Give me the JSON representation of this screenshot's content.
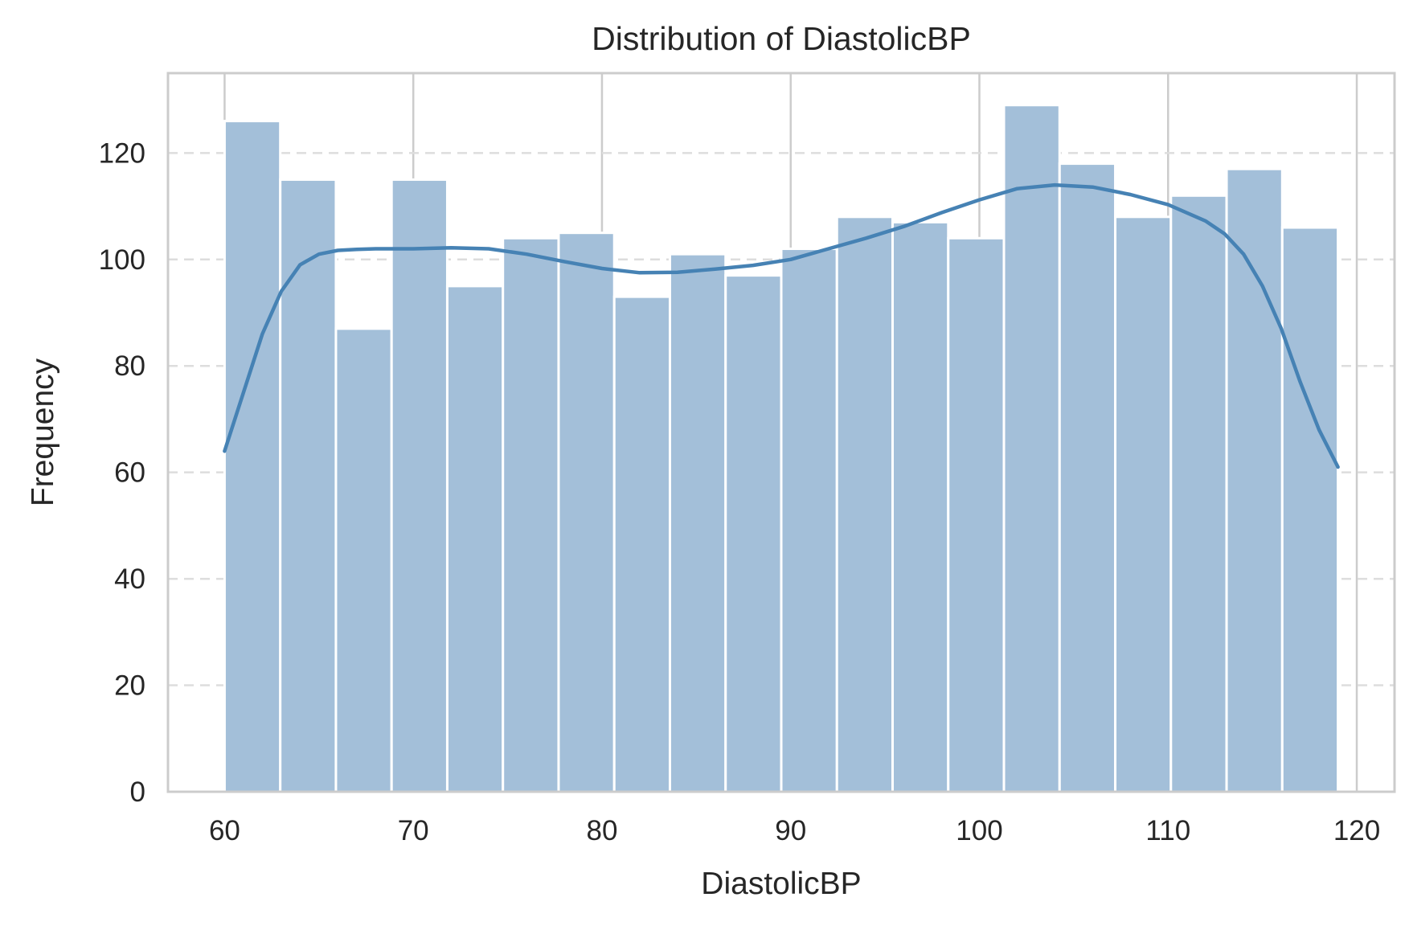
{
  "chart_data": {
    "type": "histogram",
    "title": "Distribution of DiastolicBP",
    "xlabel": "DiastolicBP",
    "ylabel": "Frequency",
    "xlim": [
      57,
      122
    ],
    "ylim": [
      0,
      135
    ],
    "xticks": [
      60,
      70,
      80,
      90,
      100,
      110,
      120
    ],
    "yticks": [
      0,
      20,
      40,
      60,
      80,
      100,
      120
    ],
    "bin_width": 2.95,
    "bins": [
      {
        "start": 60.0,
        "end": 62.95,
        "count": 126
      },
      {
        "start": 62.95,
        "end": 65.9,
        "count": 115
      },
      {
        "start": 65.9,
        "end": 68.85,
        "count": 87
      },
      {
        "start": 68.85,
        "end": 71.8,
        "count": 115
      },
      {
        "start": 71.8,
        "end": 74.75,
        "count": 95
      },
      {
        "start": 74.75,
        "end": 77.7,
        "count": 104
      },
      {
        "start": 77.7,
        "end": 80.65,
        "count": 105
      },
      {
        "start": 80.65,
        "end": 83.6,
        "count": 93
      },
      {
        "start": 83.6,
        "end": 86.55,
        "count": 101
      },
      {
        "start": 86.55,
        "end": 89.5,
        "count": 97
      },
      {
        "start": 89.5,
        "end": 92.45,
        "count": 102
      },
      {
        "start": 92.45,
        "end": 95.4,
        "count": 108
      },
      {
        "start": 95.4,
        "end": 98.35,
        "count": 107
      },
      {
        "start": 98.35,
        "end": 101.3,
        "count": 104
      },
      {
        "start": 101.3,
        "end": 104.25,
        "count": 129
      },
      {
        "start": 104.25,
        "end": 107.2,
        "count": 118
      },
      {
        "start": 107.2,
        "end": 110.15,
        "count": 108
      },
      {
        "start": 110.15,
        "end": 113.1,
        "count": 112
      },
      {
        "start": 113.1,
        "end": 116.05,
        "count": 117
      },
      {
        "start": 116.05,
        "end": 119.0,
        "count": 106
      }
    ],
    "kde": {
      "x": [
        60,
        61,
        62,
        63,
        64,
        65,
        66,
        67,
        68,
        70,
        72,
        74,
        76,
        78,
        80,
        82,
        84,
        86,
        88,
        90,
        92,
        94,
        96,
        98,
        100,
        102,
        104,
        106,
        108,
        110,
        112,
        113,
        114,
        115,
        116,
        117,
        118,
        119
      ],
      "y": [
        64,
        75,
        86,
        94,
        99,
        101,
        101.7,
        101.9,
        102,
        102,
        102.2,
        102,
        101,
        99.6,
        98.3,
        97.5,
        97.6,
        98.2,
        98.9,
        100,
        102,
        104,
        106.2,
        108.8,
        111.2,
        113.3,
        114,
        113.6,
        112.2,
        110.3,
        107.2,
        104.8,
        101,
        95,
        87,
        77,
        68,
        61
      ]
    },
    "grid": {
      "x": "solid",
      "y": "dashed"
    },
    "colors": {
      "bar": "#a3bfd9",
      "bar_edge": "#ffffff",
      "kde": "#4682b4",
      "grid": "#cccccc",
      "spine": "#cccccc",
      "text": "#262626"
    }
  }
}
